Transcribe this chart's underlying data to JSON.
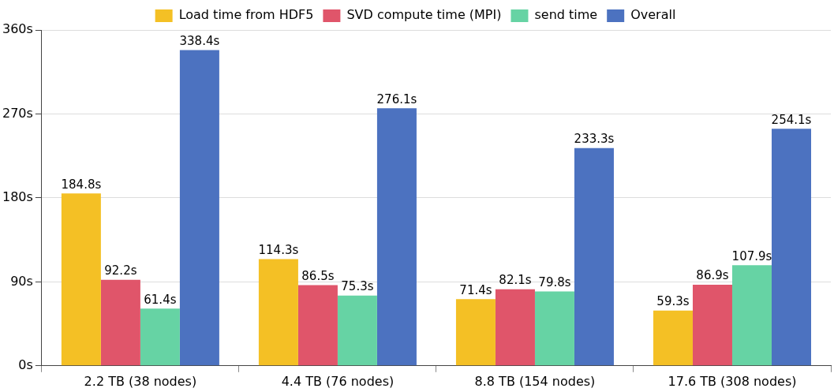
{
  "chart_data": {
    "type": "bar",
    "categories": [
      "2.2 TB (38 nodes)",
      "4.4 TB (76 nodes)",
      "8.8 TB (154 nodes)",
      "17.6 TB (308 nodes)"
    ],
    "series": [
      {
        "name": "Load time from HDF5",
        "color": "#f4c025",
        "values": [
          184.8,
          114.3,
          71.4,
          59.3
        ],
        "value_labels": [
          "184.8s",
          "114.3s",
          "71.4s",
          "59.3s"
        ]
      },
      {
        "name": "SVD compute time (MPI)",
        "color": "#e0556a",
        "values": [
          92.2,
          86.5,
          82.1,
          86.9
        ],
        "value_labels": [
          "92.2s",
          "86.5s",
          "82.1s",
          "86.9s"
        ]
      },
      {
        "name": "send time",
        "color": "#66d3a4",
        "values": [
          61.4,
          75.3,
          79.8,
          107.9
        ],
        "value_labels": [
          "61.4s",
          "75.3s",
          "79.8s",
          "107.9s"
        ]
      },
      {
        "name": "Overall",
        "color": "#4c72c0",
        "values": [
          338.4,
          276.1,
          233.3,
          254.1
        ],
        "value_labels": [
          "338.4s",
          "276.1s",
          "233.3s",
          "254.1s"
        ]
      }
    ],
    "ylim": [
      0,
      360
    ],
    "yticks": [
      {
        "value": 0,
        "label": "0s"
      },
      {
        "value": 90,
        "label": "90s"
      },
      {
        "value": 180,
        "label": "180s"
      },
      {
        "value": 270,
        "label": "270s"
      },
      {
        "value": 360,
        "label": "360s"
      }
    ],
    "grid": "y",
    "legend": "top"
  }
}
